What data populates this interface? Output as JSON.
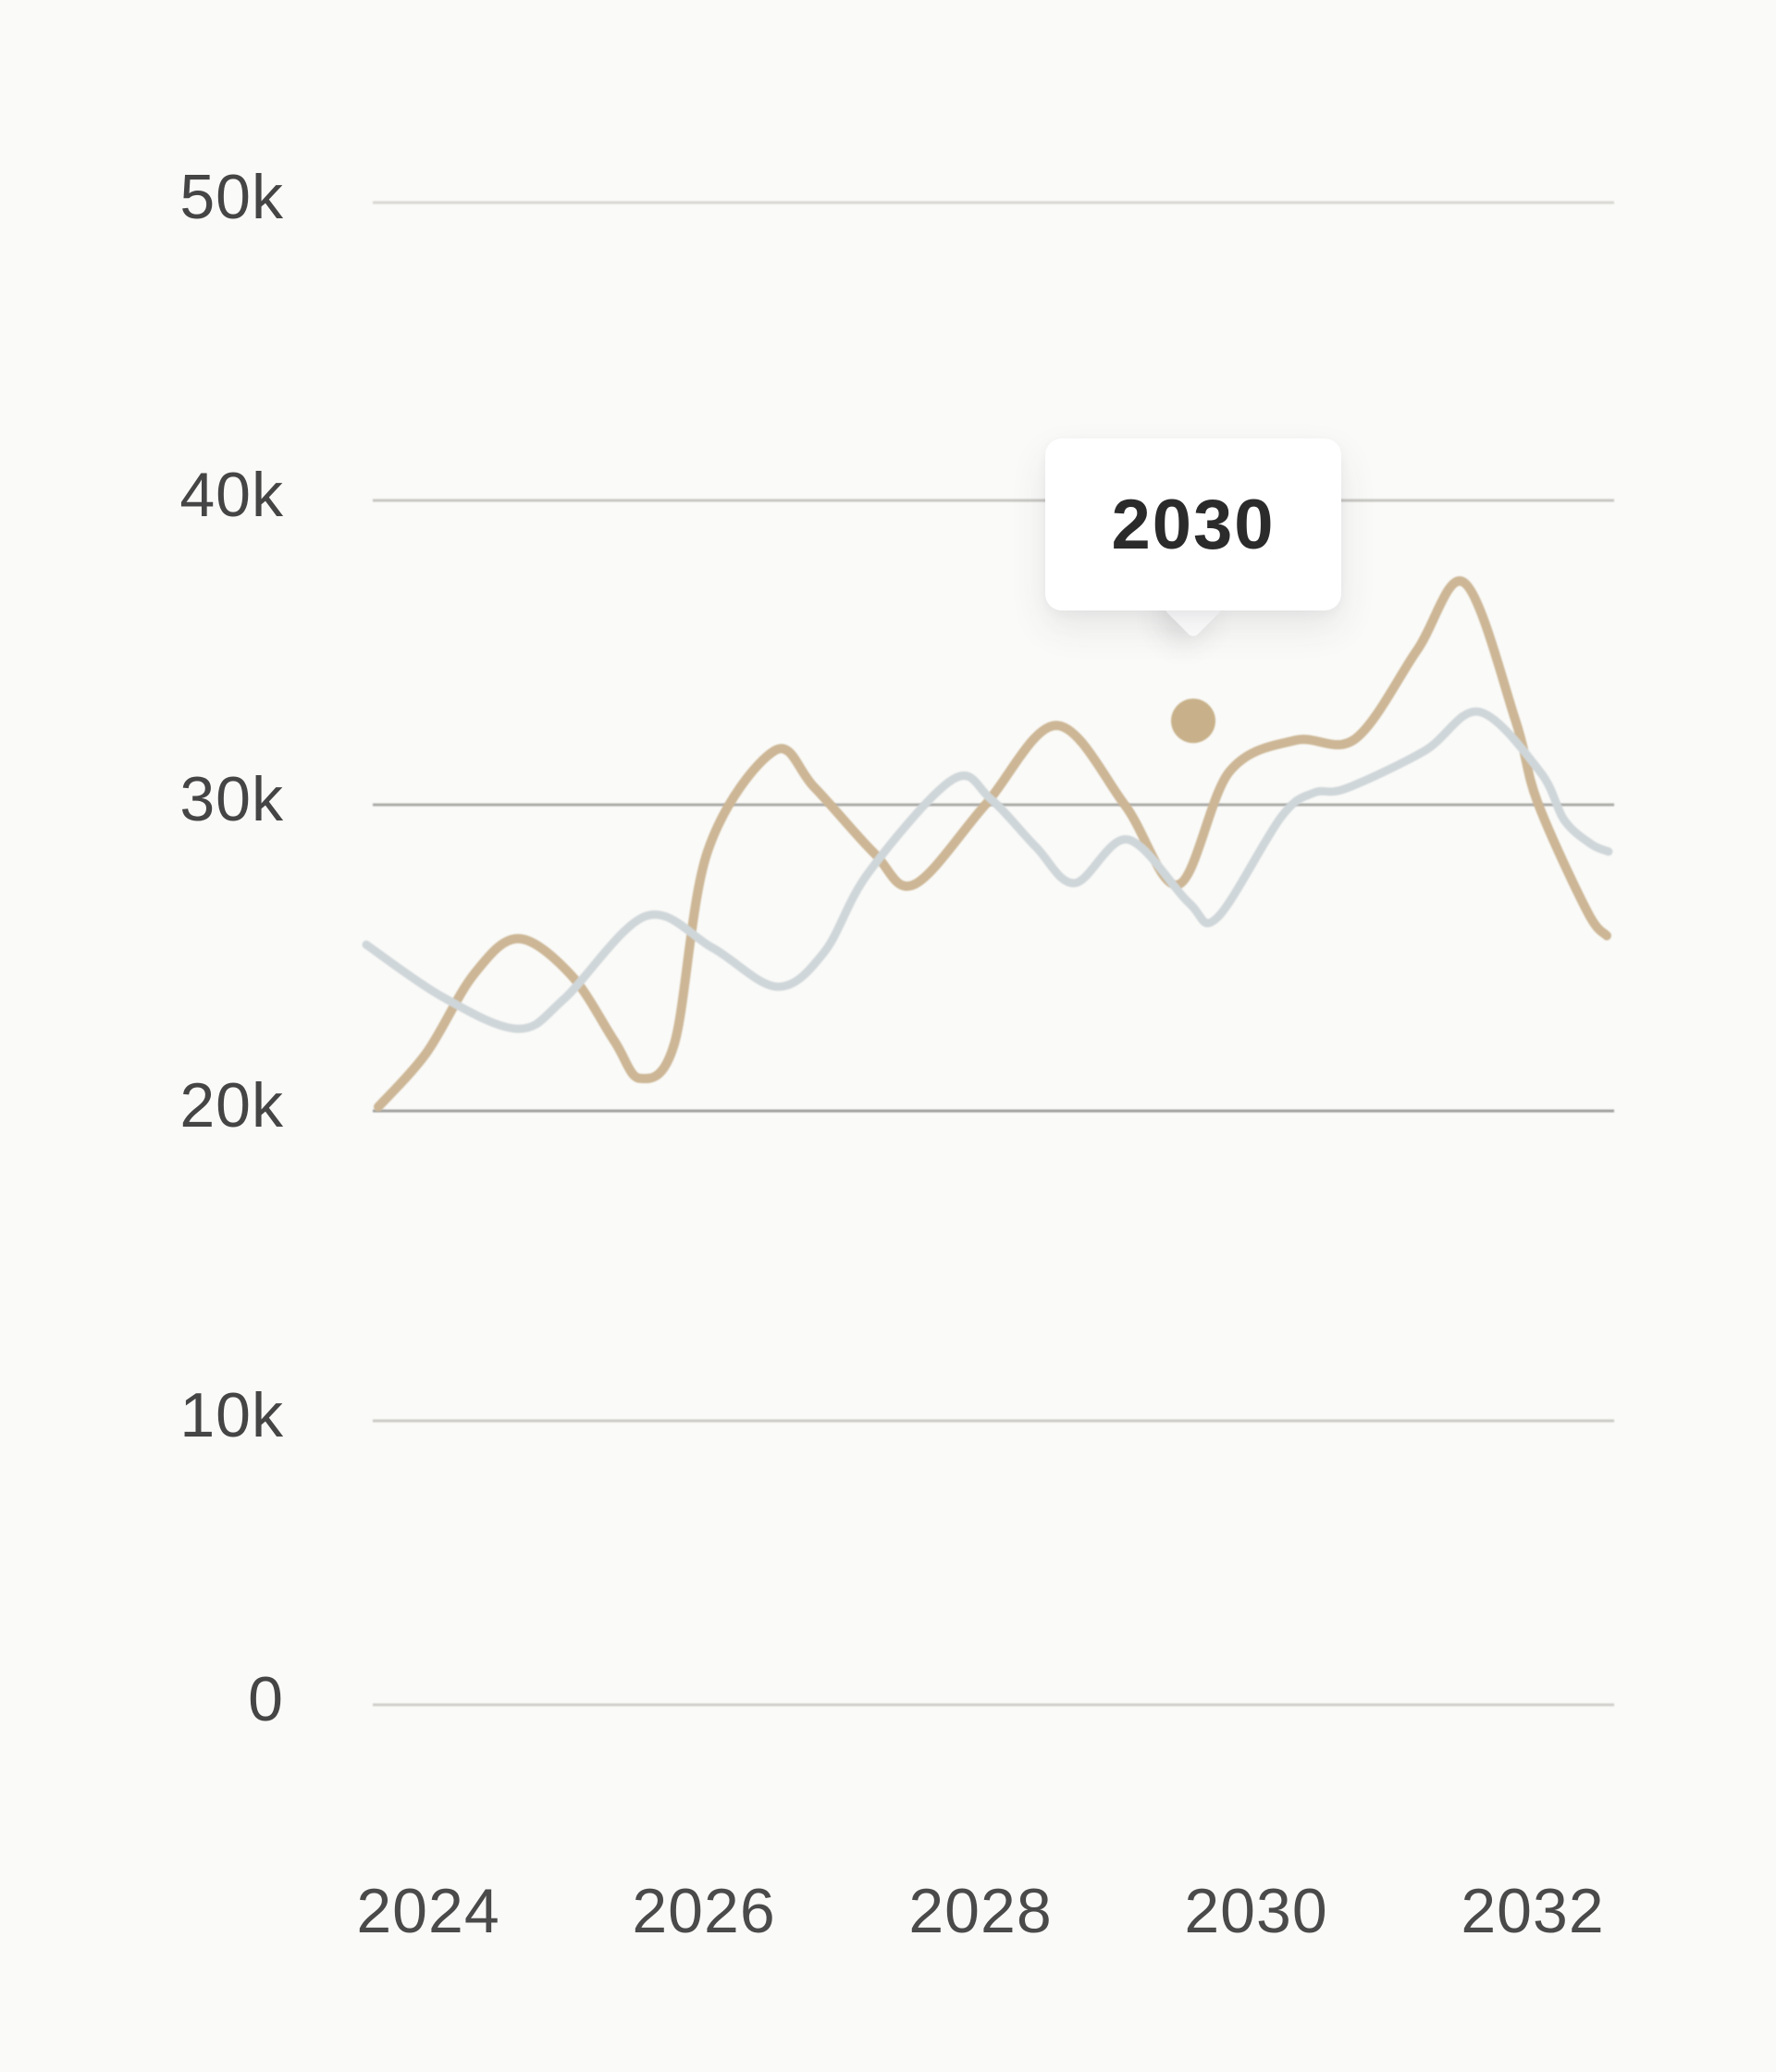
{
  "chart_data": {
    "type": "line",
    "title": "",
    "xlabel": "",
    "ylabel": "",
    "grid": "horizontal",
    "legend": "none",
    "y_axis": {
      "ticks": [
        "50k",
        "40k",
        "30k",
        "20k",
        "10k",
        "0"
      ],
      "values": [
        50000,
        40000,
        30000,
        20000,
        10000,
        0
      ],
      "ylim": [
        0,
        50000
      ]
    },
    "x_axis": {
      "ticks": [
        "2024",
        "2026",
        "2028",
        "2030",
        "2032"
      ],
      "values": [
        2024,
        2026,
        2028,
        2030,
        2032
      ]
    },
    "series": [
      {
        "id": "tan",
        "color": "#ccb695",
        "stroke_width": 10,
        "points": [
          [
            2023.638,
            19900
          ],
          [
            2023.987,
            21700
          ],
          [
            2024.328,
            24300
          ],
          [
            2024.65,
            25500
          ],
          [
            2025.032,
            24300
          ],
          [
            2025.347,
            22100
          ],
          [
            2025.534,
            20850
          ],
          [
            2025.782,
            22000
          ],
          [
            2026.023,
            28400
          ],
          [
            2026.506,
            31750
          ],
          [
            2026.794,
            30550
          ],
          [
            2027.229,
            28350
          ],
          [
            2027.518,
            27300
          ],
          [
            2028.034,
            29950
          ],
          [
            2028.549,
            32600
          ],
          [
            2029.045,
            29950
          ],
          [
            2029.434,
            27300
          ],
          [
            2029.802,
            31050
          ],
          [
            2030.278,
            32100
          ],
          [
            2030.714,
            32150
          ],
          [
            2031.162,
            35100
          ],
          [
            2031.504,
            37350
          ],
          [
            2031.873,
            32800
          ],
          [
            2032.034,
            30050
          ],
          [
            2032.395,
            26400
          ],
          [
            2032.536,
            25600
          ]
        ]
      },
      {
        "id": "blue-gray",
        "color": "#cfd6d9",
        "stroke_width": 9,
        "points": [
          [
            2023.551,
            25300
          ],
          [
            2024.107,
            23550
          ],
          [
            2024.65,
            22500
          ],
          [
            2024.985,
            23500
          ],
          [
            2025.575,
            26250
          ],
          [
            2026.057,
            25200
          ],
          [
            2026.526,
            23900
          ],
          [
            2026.868,
            25050
          ],
          [
            2027.189,
            27700
          ],
          [
            2027.799,
            30800
          ],
          [
            2028.074,
            30150
          ],
          [
            2028.402,
            28550
          ],
          [
            2028.683,
            27350
          ],
          [
            2029.065,
            28800
          ],
          [
            2029.508,
            26700
          ],
          [
            2029.715,
            26200
          ],
          [
            2030.178,
            29550
          ],
          [
            2030.412,
            30350
          ],
          [
            2030.647,
            30500
          ],
          [
            2031.216,
            31750
          ],
          [
            2031.611,
            33050
          ],
          [
            2032.054,
            31050
          ],
          [
            2032.228,
            29450
          ],
          [
            2032.422,
            28650
          ],
          [
            2032.549,
            28400
          ]
        ]
      }
    ],
    "tooltip": {
      "label": "2030",
      "marker": {
        "x": 2029.541,
        "y": 32750,
        "color": "#c8b18a"
      }
    }
  },
  "colors": {
    "background": "#fafaf8",
    "grid_lines": [
      "#d8d6d2",
      "#c6c5c1",
      "#a9a9a7",
      "#9ea09e",
      "#cbc9c5",
      "#cfcdc9"
    ],
    "axis_label": "#454545",
    "tooltip_background": "#ffffff",
    "tooltip_text": "#2b2b2b"
  }
}
